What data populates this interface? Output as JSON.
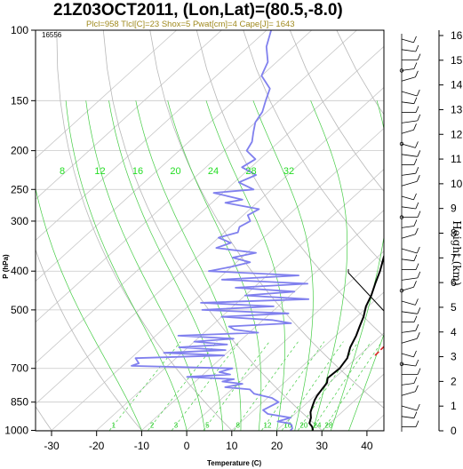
{
  "chart_data": {
    "type": "line",
    "title": "21Z03OCT2011, (Lon,Lat)=(80.5,-8.0)",
    "subtitle": "Plcl=958 Tlcl[C]=23 Shox=5 Pwat[cm]=4 Cape[J]= 1643",
    "xlabel": "Temperature (C)",
    "ylabel": "P (hPa)",
    "height_label": "Height (km)",
    "corner_label": "16556",
    "x_ticks": [
      "-30",
      "-20",
      "-10",
      "0",
      "10",
      "20",
      "30",
      "40"
    ],
    "pressure_ticks": [
      "100",
      "150",
      "200",
      "250",
      "300",
      "400",
      "500",
      "700",
      "850",
      "1000"
    ],
    "height_ticks": [
      "0",
      "1",
      "2",
      "3",
      "4",
      "5",
      "6",
      "7",
      "8",
      "9",
      "10",
      "11",
      "12",
      "13",
      "14",
      "15",
      "16"
    ],
    "mixing_ratio_labels": [
      "8",
      "12",
      "16",
      "20",
      "24",
      "28",
      "32"
    ],
    "series": [
      {
        "color": "#000000",
        "points": [
          [
            28,
            1000
          ],
          [
            27,
            980
          ],
          [
            25.5,
            960
          ],
          [
            24.5,
            930
          ],
          [
            23,
            900
          ],
          [
            22,
            870
          ],
          [
            21,
            840
          ],
          [
            20.5,
            820
          ],
          [
            20,
            790
          ],
          [
            19.5,
            760
          ],
          [
            18.5,
            740
          ],
          [
            18.8,
            700
          ],
          [
            18,
            660
          ],
          [
            16,
            620
          ],
          [
            14.5,
            580
          ],
          [
            13,
            550
          ],
          [
            11.5,
            520
          ],
          [
            9.5,
            490
          ],
          [
            8,
            460
          ],
          [
            6,
            430
          ],
          [
            4,
            400
          ],
          [
            1.5,
            370
          ],
          [
            -1,
            340
          ],
          [
            -4,
            310
          ],
          [
            -6.5,
            290
          ],
          [
            -9.5,
            270
          ],
          [
            -12,
            255
          ],
          [
            -15,
            235
          ],
          [
            -18,
            215
          ],
          [
            -21,
            195
          ],
          [
            -25,
            175
          ],
          [
            -29,
            160
          ],
          [
            -31,
            150
          ],
          [
            -35,
            135
          ],
          [
            -35,
            130
          ],
          [
            -32,
            125
          ],
          [
            -33,
            120
          ],
          [
            -30,
            115
          ],
          [
            -26,
            108
          ],
          [
            -22,
            100
          ]
        ]
      },
      {
        "color": "#8080ee",
        "points": [
          [
            23,
            1000
          ],
          [
            23,
            990
          ],
          [
            22,
            970
          ],
          [
            21,
            960
          ],
          [
            18,
            950
          ],
          [
            20,
            930
          ],
          [
            14,
            910
          ],
          [
            12,
            890
          ],
          [
            13.5,
            850
          ],
          [
            11,
            830
          ],
          [
            6,
            810
          ],
          [
            4,
            790
          ],
          [
            -2,
            780
          ],
          [
            1,
            765
          ],
          [
            -4,
            755
          ],
          [
            -2,
            745
          ],
          [
            -13,
            735
          ],
          [
            -4,
            725
          ],
          [
            -7,
            715
          ],
          [
            -5,
            700
          ],
          [
            -28,
            690
          ],
          [
            -27,
            680
          ],
          [
            -29,
            660
          ],
          [
            -10,
            650
          ],
          [
            -24,
            640
          ],
          [
            -11,
            630
          ],
          [
            -22,
            620
          ],
          [
            -12,
            610
          ],
          [
            -20,
            600
          ],
          [
            -12,
            590
          ],
          [
            -25,
            580
          ],
          [
            -8,
            570
          ],
          [
            -14,
            560
          ],
          [
            -16,
            550
          ],
          [
            -3,
            540
          ],
          [
            -8,
            530
          ],
          [
            -20,
            520
          ],
          [
            -6,
            510
          ],
          [
            -26,
            500
          ],
          [
            -11,
            490
          ],
          [
            -28,
            480
          ],
          [
            -5,
            470
          ],
          [
            -20,
            460
          ],
          [
            -10,
            450
          ],
          [
            -24,
            440
          ],
          [
            -9,
            430
          ],
          [
            -29,
            420
          ],
          [
            -13,
            410
          ],
          [
            -34,
            400
          ],
          [
            -30,
            390
          ],
          [
            -27,
            380
          ],
          [
            -32,
            370
          ],
          [
            -28,
            360
          ],
          [
            -38,
            350
          ],
          [
            -36,
            340
          ],
          [
            -40,
            330
          ],
          [
            -37,
            320
          ],
          [
            -38,
            310
          ],
          [
            -37,
            300
          ],
          [
            -39,
            290
          ],
          [
            -38,
            280
          ],
          [
            -47,
            270
          ],
          [
            -44,
            265
          ],
          [
            -52,
            255
          ],
          [
            -44,
            250
          ],
          [
            -49,
            240
          ],
          [
            -47,
            230
          ],
          [
            -52,
            220
          ],
          [
            -51,
            210
          ],
          [
            -55,
            200
          ],
          [
            -56,
            190
          ],
          [
            -58,
            180
          ],
          [
            -60,
            170
          ],
          [
            -61,
            160
          ],
          [
            -63,
            150
          ],
          [
            -65,
            140
          ],
          [
            -70,
            130
          ],
          [
            -72,
            120
          ],
          [
            -76,
            110
          ],
          [
            -79,
            100
          ]
        ]
      },
      {
        "color": "#dd2222",
        "points": [
          [
            23.5,
            650
          ],
          [
            23.2,
            600
          ],
          [
            22.5,
            550
          ],
          [
            21.5,
            500
          ],
          [
            20,
            450
          ],
          [
            17.5,
            400
          ],
          [
            15,
            365
          ],
          [
            12,
            330
          ],
          [
            8,
            300
          ],
          [
            3,
            270
          ],
          [
            -3,
            240
          ],
          [
            -10,
            210
          ],
          [
            -17,
            185
          ],
          [
            -24,
            165
          ],
          [
            -31,
            150
          ],
          [
            -36,
            140
          ]
        ]
      }
    ],
    "x_range": [
      -35,
      50
    ],
    "p_range": [
      100,
      1000
    ],
    "grid": true
  }
}
